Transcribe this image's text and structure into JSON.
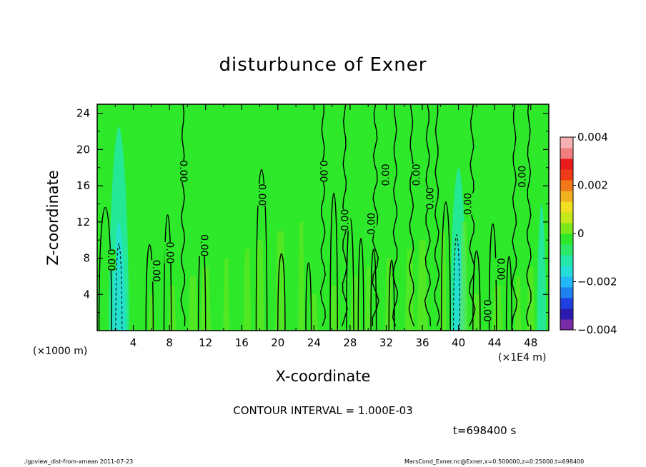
{
  "title": "disturbunce of Exner",
  "chart_data": {
    "type": "heatmap",
    "title": "disturbunce of Exner",
    "xlabel": "X-coordinate",
    "ylabel": "Z-coordinate",
    "x_unit_left": "(×1000 m)",
    "x_unit_right": "(×1E4 m)",
    "xlim": [
      0,
      50
    ],
    "ylim": [
      0,
      25
    ],
    "xticks": [
      "4",
      "8",
      "12",
      "16",
      "20",
      "24",
      "28",
      "32",
      "36",
      "40",
      "44",
      "48"
    ],
    "yticks": [
      "4",
      "8",
      "12",
      "16",
      "20",
      "24"
    ],
    "colorbar": {
      "range": [
        -0.004,
        0.004
      ],
      "labels": [
        "0.004",
        "0.002",
        "0",
        "−0.002",
        "−0.004"
      ],
      "colors": [
        "#7a2ca8",
        "#2a1ab0",
        "#1f3fe0",
        "#1f80f0",
        "#22b8f6",
        "#25ded8",
        "#22e7a8",
        "#2ce868",
        "#2ee82a",
        "#7ce81a",
        "#c4e81a",
        "#f0e022",
        "#f0b020",
        "#f07818",
        "#f03a18",
        "#e81a1a",
        "#f27f7f",
        "#f6b2b2"
      ]
    },
    "contour_label": "0.00",
    "contour_interval": "CONTOUR INTERVAL = 1.000E-03",
    "background_value": 0.0
  },
  "time_label": "t=698400 s",
  "footer_left": "./gpview_dist-from-xmean  2011-07-23",
  "footer_right": "MarsCond_Exner.nc@Exner,x=0:500000,z=0:25000,t=698400",
  "colors": {
    "field": "#2ee82a",
    "neg_light": "#22e7a8",
    "neg": "#25ded8",
    "pos_light": "#7ce81a"
  }
}
